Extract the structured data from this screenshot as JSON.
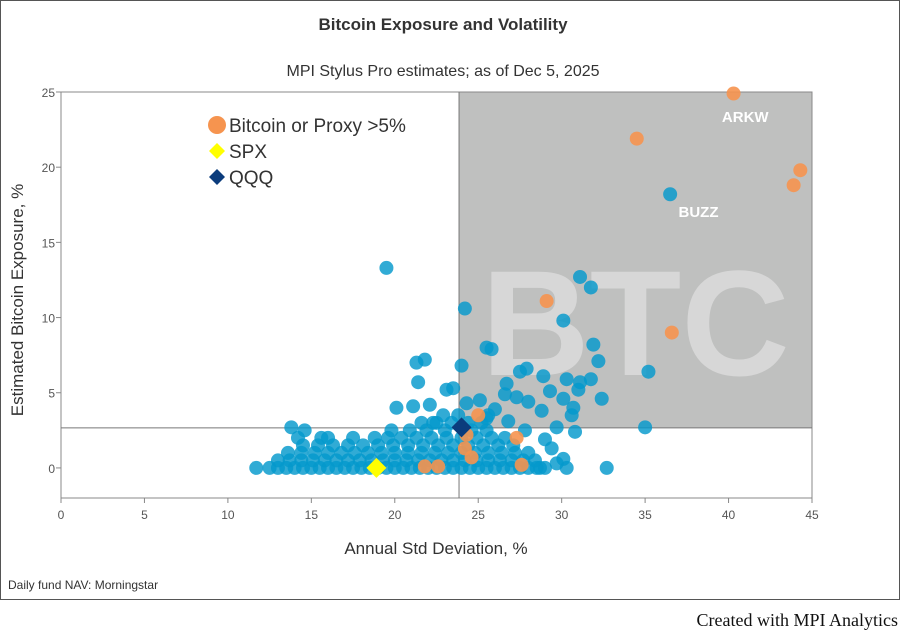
{
  "chart_data": {
    "type": "scatter",
    "title": "Bitcoin Exposure and Volatility",
    "subtitle": "MPI Stylus Pro estimates; as of Dec 5, 2025",
    "xlabel": "Annual Std Deviation, %",
    "ylabel": "Estimated Bitcoin Exposure, %",
    "xlim": [
      0,
      45
    ],
    "ylim": [
      -2,
      25
    ],
    "xticks": [
      0,
      5,
      10,
      15,
      20,
      25,
      30,
      35,
      40,
      45
    ],
    "yticks": [
      0,
      5,
      10,
      15,
      20,
      25
    ],
    "grid": false,
    "legend_position": "top-left",
    "reference_lines": {
      "x": 23.85,
      "y": 2.66
    },
    "highlight_region": {
      "x": [
        23.85,
        45
      ],
      "y": [
        2.66,
        25
      ],
      "label": "BTC",
      "color": "#bfc0bf"
    },
    "annotations": [
      {
        "text": "ARKW",
        "x": 41.0,
        "y": 23.0
      },
      {
        "text": "BUZZ",
        "x": 38.2,
        "y": 16.7
      }
    ],
    "footer": "Daily fund NAV: Morningstar",
    "credit": "Created with MPI Analytics",
    "series": [
      {
        "marker": "circle",
        "color": "#0499cc",
        "points": [
          [
            36.5,
            18.2
          ],
          [
            19.5,
            13.3
          ],
          [
            31.1,
            12.7
          ],
          [
            31.75,
            12.0
          ],
          [
            24.2,
            10.6
          ],
          [
            30.1,
            9.8
          ],
          [
            25.5,
            8.0
          ],
          [
            25.8,
            7.9
          ],
          [
            31.9,
            8.2
          ],
          [
            32.2,
            7.1
          ],
          [
            35.2,
            6.4
          ],
          [
            24.0,
            6.8
          ],
          [
            27.5,
            6.4
          ],
          [
            27.9,
            6.6
          ],
          [
            28.9,
            6.1
          ],
          [
            30.3,
            5.9
          ],
          [
            31.1,
            5.7
          ],
          [
            31.75,
            5.9
          ],
          [
            26.7,
            5.6
          ],
          [
            31.0,
            5.2
          ],
          [
            29.3,
            5.1
          ],
          [
            26.6,
            4.9
          ],
          [
            27.3,
            4.7
          ],
          [
            30.1,
            4.6
          ],
          [
            32.4,
            4.6
          ],
          [
            28.0,
            4.4
          ],
          [
            30.7,
            4.0
          ],
          [
            28.8,
            3.8
          ],
          [
            30.6,
            3.5
          ],
          [
            35.0,
            2.7
          ],
          [
            32.7,
            0
          ],
          [
            30.3,
            0
          ],
          [
            30.1,
            0.6
          ],
          [
            29.7,
            0.3
          ],
          [
            30.8,
            2.4
          ],
          [
            29.7,
            2.7
          ],
          [
            29.0,
            1.9
          ],
          [
            29.4,
            1.3
          ],
          [
            28.7,
            0
          ],
          [
            21.3,
            7.0
          ],
          [
            21.8,
            7.2
          ],
          [
            21.4,
            5.7
          ],
          [
            13.8,
            2.7
          ],
          [
            11.7,
            0
          ],
          [
            20.1,
            4.0
          ],
          [
            21.1,
            4.1
          ],
          [
            22.1,
            4.2
          ],
          [
            23.1,
            5.2
          ],
          [
            22.3,
            3.0
          ],
          [
            23.5,
            5.3
          ],
          [
            24.3,
            4.3
          ],
          [
            25.1,
            4.5
          ],
          [
            26.0,
            3.9
          ],
          [
            25.5,
            3.3
          ],
          [
            26.8,
            3.1
          ],
          [
            27.8,
            2.5
          ],
          [
            12.5,
            0
          ],
          [
            13,
            0
          ],
          [
            13.5,
            0
          ],
          [
            14,
            0
          ],
          [
            14.5,
            0
          ],
          [
            15,
            0
          ],
          [
            15.5,
            0
          ],
          [
            16,
            0
          ],
          [
            16.5,
            0
          ],
          [
            17,
            0
          ],
          [
            17.5,
            0
          ],
          [
            18,
            0
          ],
          [
            18.5,
            0
          ],
          [
            19,
            0
          ],
          [
            19.5,
            0
          ],
          [
            20,
            0
          ],
          [
            20.5,
            0
          ],
          [
            21,
            0
          ],
          [
            21.5,
            0
          ],
          [
            22,
            0
          ],
          [
            22.5,
            0
          ],
          [
            23,
            0
          ],
          [
            23.5,
            0
          ],
          [
            24,
            0
          ],
          [
            24.5,
            0
          ],
          [
            25,
            0
          ],
          [
            25.5,
            0
          ],
          [
            26,
            0
          ],
          [
            26.5,
            0
          ],
          [
            27,
            0
          ],
          [
            27.5,
            0
          ],
          [
            28,
            0
          ],
          [
            28.5,
            0
          ],
          [
            29,
            0
          ],
          [
            13,
            0.5
          ],
          [
            13.7,
            0.5
          ],
          [
            14.4,
            0.5
          ],
          [
            15.1,
            0.5
          ],
          [
            15.8,
            0.5
          ],
          [
            16.5,
            0.5
          ],
          [
            17.2,
            0.5
          ],
          [
            17.9,
            0.5
          ],
          [
            18.6,
            0.5
          ],
          [
            19.3,
            0.5
          ],
          [
            20,
            0.5
          ],
          [
            20.7,
            0.5
          ],
          [
            21.4,
            0.5
          ],
          [
            22.1,
            0.5
          ],
          [
            22.8,
            0.5
          ],
          [
            23.5,
            0.5
          ],
          [
            24.2,
            0.5
          ],
          [
            24.9,
            0.5
          ],
          [
            25.6,
            0.5
          ],
          [
            26.3,
            0.5
          ],
          [
            27,
            0.5
          ],
          [
            27.7,
            0.5
          ],
          [
            28.4,
            0.5
          ],
          [
            13.6,
            1.0
          ],
          [
            14.4,
            1.0
          ],
          [
            15.2,
            1.0
          ],
          [
            16,
            1.0
          ],
          [
            16.8,
            1.0
          ],
          [
            17.6,
            1.0
          ],
          [
            18.4,
            1.0
          ],
          [
            19.2,
            1.0
          ],
          [
            20,
            1.0
          ],
          [
            20.8,
            1.0
          ],
          [
            21.6,
            1.0
          ],
          [
            22.4,
            1.0
          ],
          [
            23.2,
            1.0
          ],
          [
            24,
            1.0
          ],
          [
            24.8,
            1.0
          ],
          [
            25.6,
            1.0
          ],
          [
            26.4,
            1.0
          ],
          [
            27.2,
            1.0
          ],
          [
            28,
            1.0
          ],
          [
            14.5,
            1.5
          ],
          [
            15.4,
            1.5
          ],
          [
            16.3,
            1.5
          ],
          [
            17.2,
            1.5
          ],
          [
            18.1,
            1.5
          ],
          [
            19,
            1.5
          ],
          [
            19.9,
            1.5
          ],
          [
            20.8,
            1.5
          ],
          [
            21.7,
            1.5
          ],
          [
            22.6,
            1.5
          ],
          [
            23.5,
            1.5
          ],
          [
            24.4,
            1.5
          ],
          [
            25.3,
            1.5
          ],
          [
            26.2,
            1.5
          ],
          [
            27.1,
            1.5
          ],
          [
            14.2,
            2.0
          ],
          [
            15.6,
            2.0
          ],
          [
            16,
            2.0
          ],
          [
            17.5,
            2.0
          ],
          [
            18.8,
            2.0
          ],
          [
            19.6,
            2.0
          ],
          [
            20.4,
            2.0
          ],
          [
            21.3,
            2.0
          ],
          [
            22.2,
            2.0
          ],
          [
            23.1,
            2.0
          ],
          [
            24,
            2.0
          ],
          [
            24.9,
            2.0
          ],
          [
            25.8,
            2.0
          ],
          [
            26.6,
            2.0
          ],
          [
            14.6,
            2.5
          ],
          [
            19.8,
            2.5
          ],
          [
            20.9,
            2.5
          ],
          [
            21.9,
            2.5
          ],
          [
            23,
            2.5
          ],
          [
            24.6,
            2.5
          ],
          [
            25.5,
            2.5
          ],
          [
            21.6,
            3.0
          ],
          [
            22.5,
            3.0
          ],
          [
            23.4,
            3.0
          ],
          [
            24.4,
            3.0
          ],
          [
            25.2,
            3.0
          ],
          [
            22.9,
            3.5
          ],
          [
            23.8,
            3.5
          ],
          [
            25.6,
            3.5
          ]
        ]
      },
      {
        "name": "Bitcoin or Proxy >5%",
        "marker": "circle",
        "color": "#f6944f",
        "points": [
          [
            40.3,
            24.9
          ],
          [
            34.5,
            21.9
          ],
          [
            44.3,
            19.8
          ],
          [
            43.9,
            18.8
          ],
          [
            29.1,
            11.1
          ],
          [
            36.6,
            9.0
          ],
          [
            27.3,
            2.0
          ],
          [
            25.0,
            3.5
          ],
          [
            21.8,
            0.1
          ],
          [
            22.6,
            0.1
          ],
          [
            27.6,
            0.2
          ],
          [
            24.2,
            1.3
          ],
          [
            24.6,
            0.7
          ],
          [
            24.3,
            2.2
          ]
        ]
      },
      {
        "name": "SPX",
        "marker": "diamond",
        "color": "#ffff00",
        "points": [
          [
            18.9,
            0.0
          ]
        ]
      },
      {
        "name": "QQQ",
        "marker": "diamond",
        "color": "#0b3c7c",
        "points": [
          [
            24.0,
            2.7
          ]
        ]
      }
    ]
  }
}
